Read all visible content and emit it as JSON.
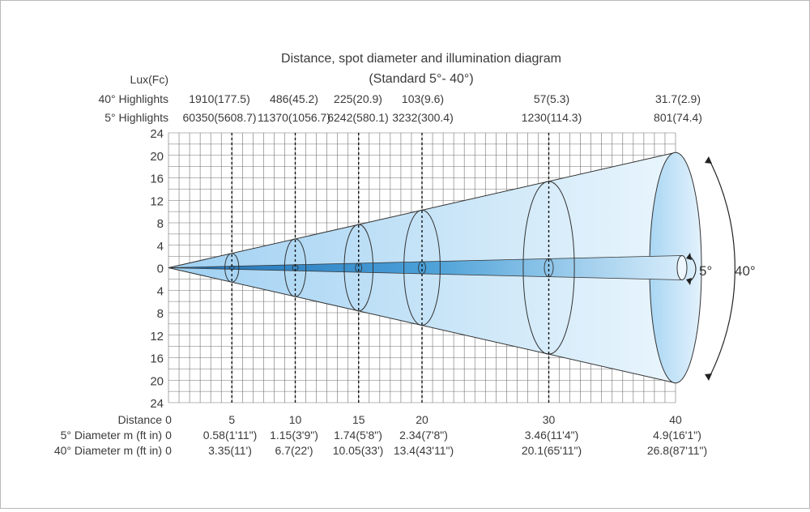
{
  "chart_data": {
    "type": "diagram",
    "title": "Distance, spot diameter and illumination diagram",
    "subtitle": "(Standard 5°- 40°)",
    "lux_header": "Lux(Fc)",
    "row_labels": {
      "h40": "40° Highlights",
      "h5": "5° Highlights",
      "distance": "Distance",
      "d5": "5° Diameter m (ft in)",
      "d40": "40° Diameter m (ft in)"
    },
    "y_ticks": [
      "24",
      "20",
      "16",
      "12",
      "8",
      "4",
      "0",
      "4",
      "8",
      "12",
      "16",
      "20",
      "24"
    ],
    "distances": [
      0,
      5,
      10,
      15,
      20,
      30,
      40
    ],
    "highlights_40": [
      "1910(177.5)",
      "486(45.2)",
      "225(20.9)",
      "103(9.6)",
      "57(5.3)",
      "31.7(2.9)"
    ],
    "highlights_5": [
      "60350(5608.7)",
      "11370(1056.7)",
      "6242(580.1)",
      "3232(300.4)",
      "1230(114.3)",
      "801(74.4)"
    ],
    "diam_5": [
      "0",
      "0.58(1'11\")",
      "1.15(3'9\")",
      "1.74(5'8\")",
      "2.34(7'8\")",
      "3.46(11'4\")",
      "4.9(16'1\")"
    ],
    "diam_40": [
      "0",
      "3.35(11')",
      "6.7(22')",
      "10.05(33')",
      "13.4(43'11\")",
      "20.1(65'11\")",
      "26.8(87'11\")"
    ],
    "beam_angles": [
      "5°",
      "40°"
    ],
    "colors": {
      "outer_cone": "#cfe6f7",
      "inner_cone": "#2f86c6",
      "grid": "#555555"
    }
  }
}
